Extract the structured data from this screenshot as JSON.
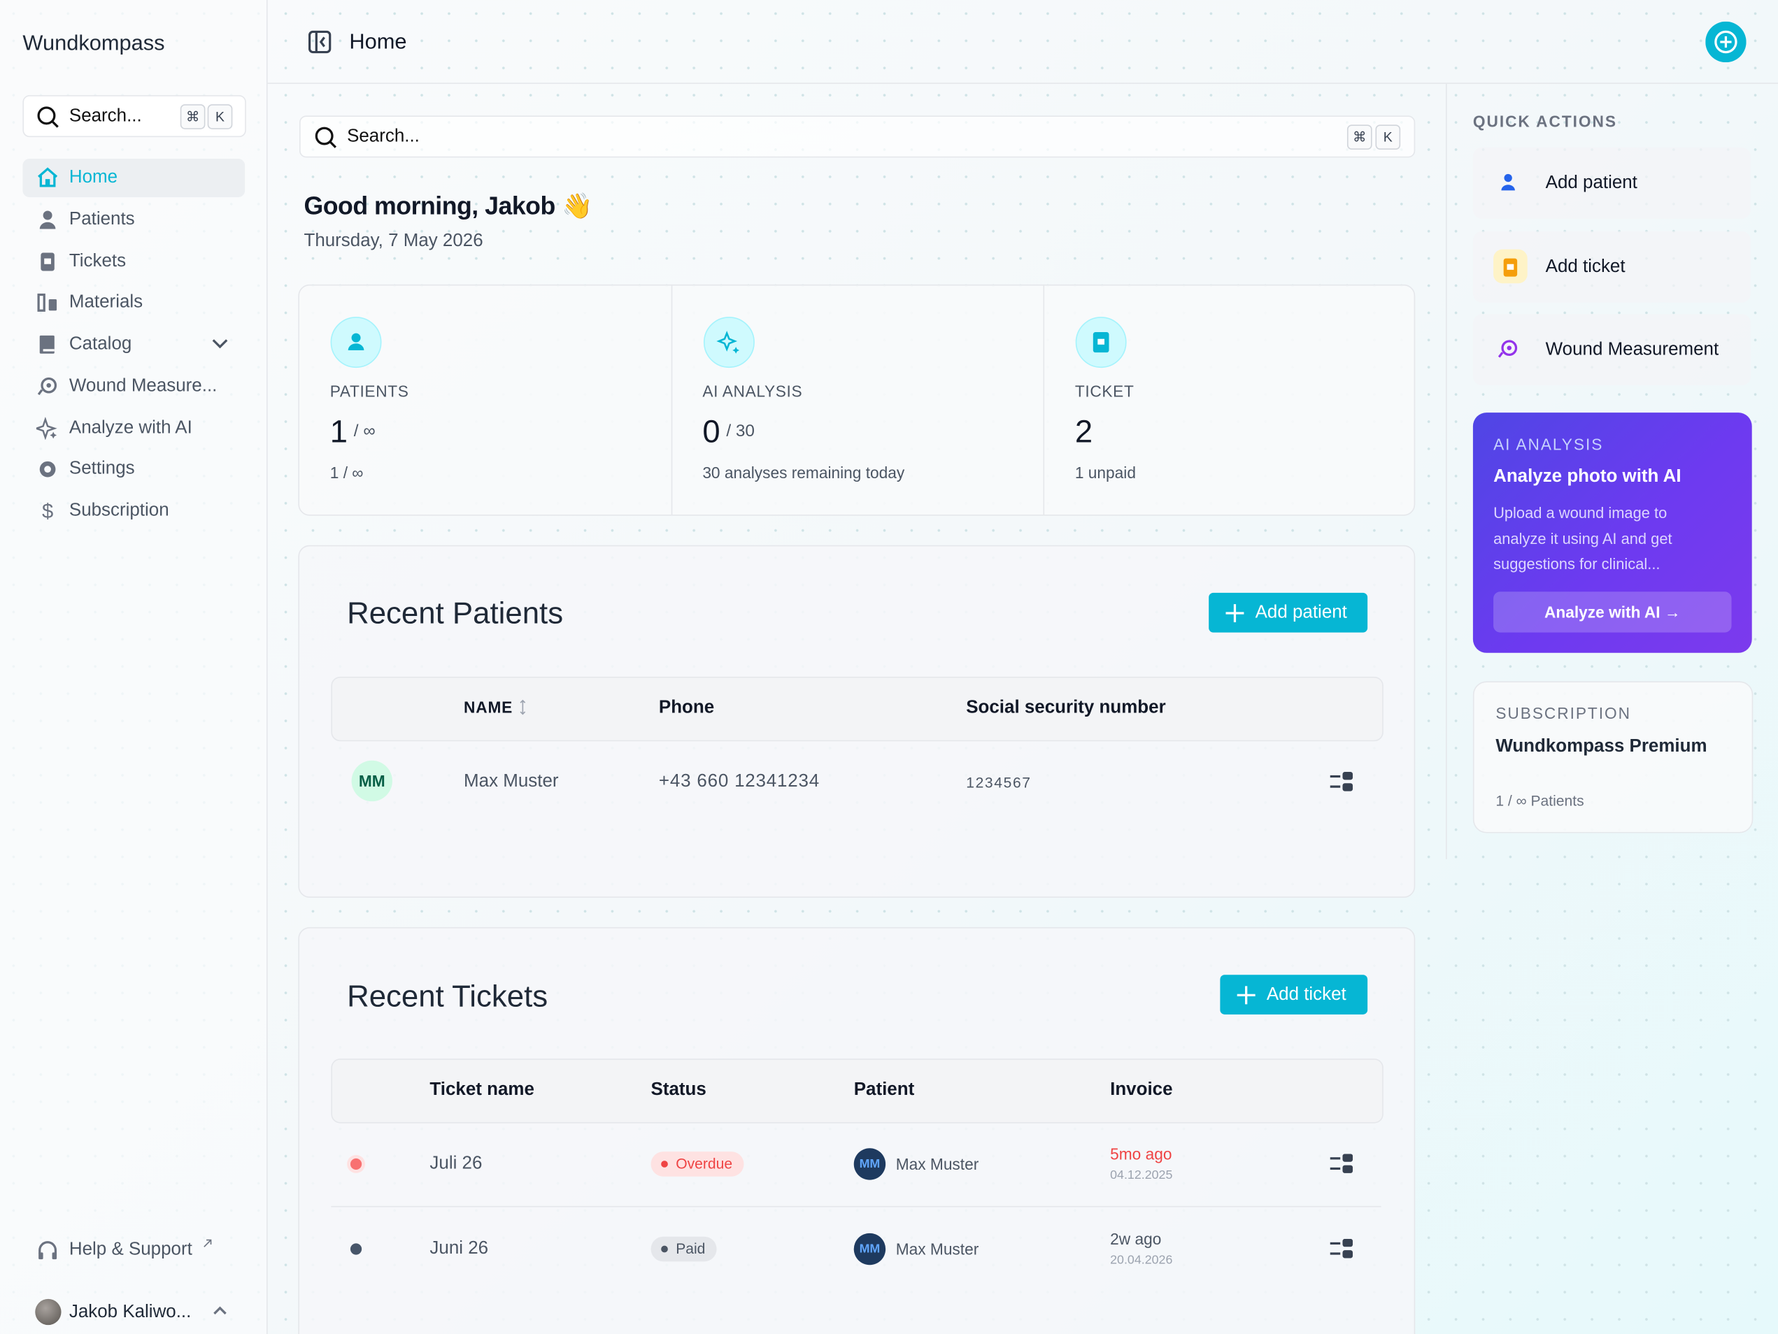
{
  "sidebar": {
    "brand": "Wundkompass",
    "search": {
      "placeholder": "Search...",
      "keys": [
        "⌘",
        "K"
      ]
    },
    "nav": [
      "Home",
      "Patients",
      "Tickets",
      "Materials",
      "Catalog",
      "Wound Measure...",
      "Analyze with AI",
      "Settings",
      "Subscription"
    ],
    "help": "Help & Support",
    "user": "Jakob Kaliwo..."
  },
  "topbar": {
    "title": "Home"
  },
  "main": {
    "search": {
      "placeholder": "Search...",
      "keys": [
        "⌘",
        "K"
      ]
    },
    "greeting": "Good morning, Jakob 👋",
    "date": "Thursday, 7 May 2026",
    "stats": [
      {
        "label": "PATIENTS",
        "value": 1,
        "limit": "/ ∞",
        "note": "1 / ∞"
      },
      {
        "label": "AI ANALYSIS",
        "value": 0,
        "limit": "/ 30",
        "note": "30 analyses remaining today"
      },
      {
        "label": "TICKET",
        "value": 2,
        "note": "1 unpaid"
      }
    ],
    "recent_patients": {
      "title": "Recent Patients",
      "button": "Add patient",
      "columns": [
        "NAME",
        "Phone",
        "Social security number"
      ],
      "rows": [
        {
          "initials": "MM",
          "name": "Max Muster",
          "phone": "+43 660 12341234",
          "ssn": "1234567"
        }
      ]
    },
    "recent_tickets": {
      "title": "Recent Tickets",
      "button": "Add ticket",
      "columns": [
        "Ticket name",
        "Status",
        "Patient",
        "Invoice"
      ],
      "rows": [
        {
          "name": "Juli 26",
          "status": "Overdue",
          "initials": "MM",
          "patient": "Max Muster",
          "invoice_relative": "5mo ago",
          "invoice_date": "04.12.2025"
        },
        {
          "name": "Juni 26",
          "status": "Paid",
          "initials": "MM",
          "patient": "Max Muster",
          "invoice_relative": "2w ago",
          "invoice_date": "20.04.2026"
        }
      ]
    }
  },
  "aside": {
    "quick_actions": {
      "title": "QUICK ACTIONS",
      "items": [
        "Add patient",
        "Add ticket",
        "Wound Measurement"
      ]
    },
    "ai_card": {
      "eyebrow": "AI ANALYSIS",
      "title": "Analyze photo with AI",
      "text": "Upload a wound image to analyze it using AI and get suggestions for clinical...",
      "button": "Analyze with AI →"
    },
    "subscription": {
      "eyebrow": "SUBSCRIPTION",
      "plan": "Wundkompass Premium",
      "note": "1 / ∞ Patients"
    }
  }
}
